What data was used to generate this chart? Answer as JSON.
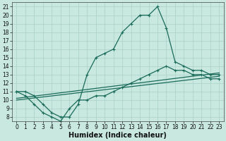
{
  "xlabel": "Humidex (Indice chaleur)",
  "xlim": [
    -0.5,
    23.5
  ],
  "ylim": [
    7.5,
    21.5
  ],
  "xticks": [
    0,
    1,
    2,
    3,
    4,
    5,
    6,
    7,
    8,
    9,
    10,
    11,
    12,
    13,
    14,
    15,
    16,
    17,
    18,
    19,
    20,
    21,
    22,
    23
  ],
  "yticks": [
    8,
    9,
    10,
    11,
    12,
    13,
    14,
    15,
    16,
    17,
    18,
    19,
    20,
    21
  ],
  "bg_color": "#c8e8e0",
  "grid_color": "#aed4cc",
  "line_color": "#1a6b5a",
  "lines": [
    {
      "x": [
        0,
        1,
        2,
        3,
        4,
        5,
        6,
        7,
        8,
        9,
        10,
        11,
        12,
        13,
        14,
        15,
        16,
        17,
        18,
        19,
        20,
        21,
        22,
        23
      ],
      "y": [
        11,
        11,
        10.5,
        9.5,
        8.5,
        8,
        8,
        9.5,
        13,
        15,
        15.5,
        16,
        18,
        19,
        20,
        20,
        21,
        18.5,
        14.5,
        14,
        13.5,
        13.5,
        13,
        13
      ]
    },
    {
      "x": [
        0,
        1,
        2,
        3,
        4,
        5,
        6,
        7,
        8,
        9,
        10,
        11,
        12,
        13,
        14,
        15,
        16,
        17,
        18,
        19,
        20,
        21,
        22,
        23
      ],
      "y": [
        11,
        10.5,
        9.5,
        8.5,
        8,
        7.5,
        9,
        10,
        10,
        10.5,
        10.5,
        11,
        11.5,
        12,
        12.5,
        13,
        13.5,
        14,
        13.5,
        13.5,
        13,
        13,
        12.5,
        12.5
      ]
    },
    {
      "x": [
        0,
        23
      ],
      "y": [
        10.2,
        13.2
      ]
    },
    {
      "x": [
        0,
        23
      ],
      "y": [
        10,
        12.8
      ]
    }
  ],
  "figsize": [
    3.2,
    2.0
  ],
  "dpi": 100,
  "tick_fontsize": 5.5,
  "label_fontsize": 7
}
